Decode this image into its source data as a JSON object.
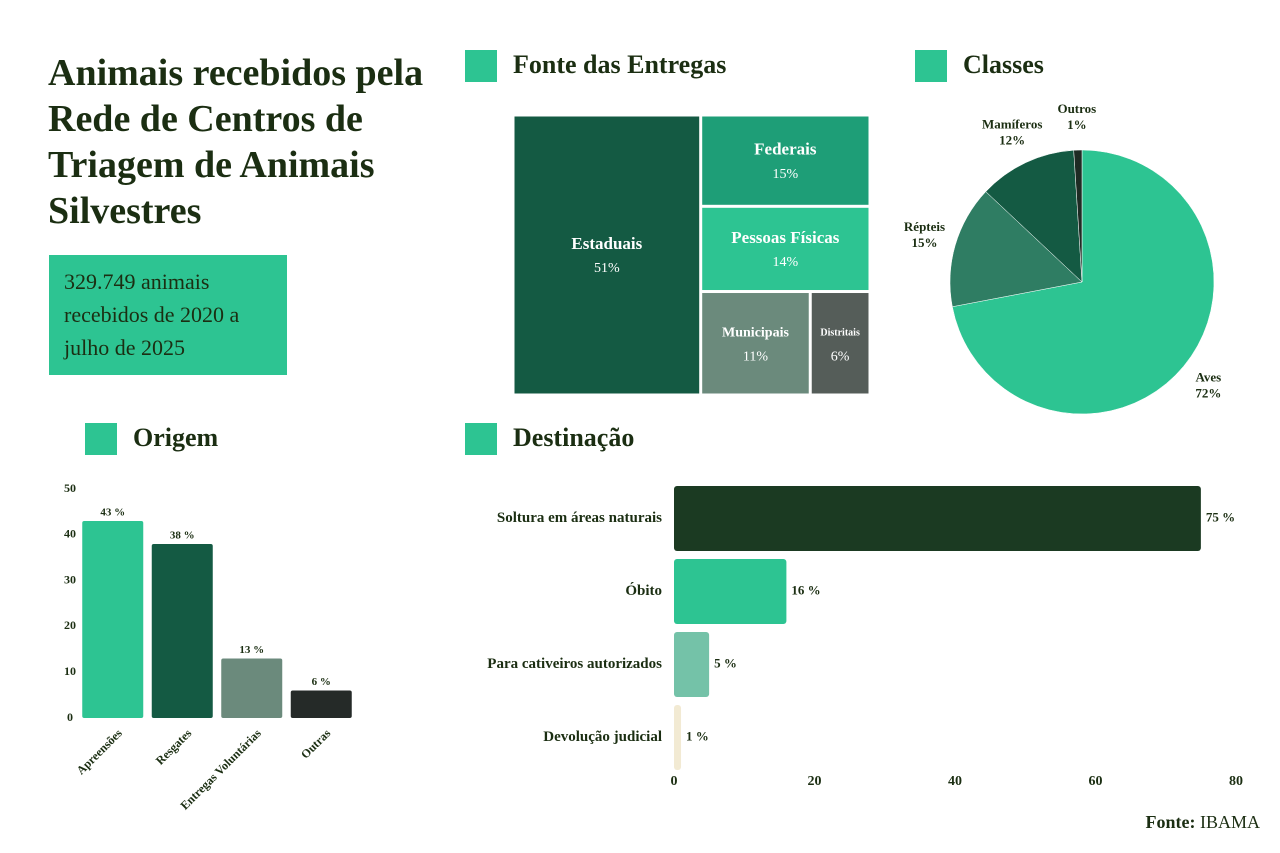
{
  "title": "Animais recebidos pela Rede de Centros de Triagem de Animais Silvestres",
  "summary": "329.749 animais recebidos de 2020 a julho de 2025",
  "source": {
    "label": "Fonte:",
    "value": "IBAMA"
  },
  "chart_data": [
    {
      "type": "treemap",
      "title": "Fonte das Entregas",
      "categories": [
        "Estaduais",
        "Federais",
        "Pessoas Físicas",
        "Municipais",
        "Distritais"
      ],
      "values": [
        51,
        15,
        14,
        11,
        6
      ],
      "value_labels": [
        "51%",
        "15%",
        "14%",
        "11%",
        "6%"
      ],
      "colors": [
        "#145a43",
        "#1e9e77",
        "#2dc492",
        "#6b8a7c",
        "#555d59"
      ]
    },
    {
      "type": "pie",
      "title": "Classes",
      "categories": [
        "Aves",
        "Répteis",
        "Mamíferos",
        "Outros"
      ],
      "values": [
        72,
        15,
        12,
        1
      ],
      "value_labels": [
        "72%",
        "15%",
        "12%",
        "1%"
      ],
      "colors": [
        "#2dc492",
        "#2f7d63",
        "#145a43",
        "#1e2b24"
      ]
    },
    {
      "type": "bar",
      "title": "Origem",
      "categories": [
        "Apreensões",
        "Resgates",
        "Entregas Voluntárias",
        "Outras"
      ],
      "values": [
        43,
        38,
        13,
        6
      ],
      "value_labels": [
        "43 %",
        "38 %",
        "13 %",
        "6 %"
      ],
      "colors": [
        "#2dc492",
        "#145a43",
        "#6b8a7c",
        "#252a28"
      ],
      "ylim": [
        0,
        50
      ],
      "yticks": [
        0,
        10,
        20,
        30,
        40,
        50
      ]
    },
    {
      "type": "hbar",
      "title": "Destinação",
      "categories": [
        "Soltura em áreas naturais",
        "Óbito",
        "Para cativeiros autorizados",
        "Devolução judicial"
      ],
      "values": [
        75,
        16,
        5,
        1
      ],
      "value_labels": [
        "75 %",
        "16 %",
        "5 %",
        "1 %"
      ],
      "colors": [
        "#1b3a22",
        "#2dc492",
        "#74c2a8",
        "#f2ead3"
      ],
      "xlim": [
        0,
        80
      ],
      "xticks": [
        0,
        20,
        40,
        60,
        80
      ]
    }
  ]
}
